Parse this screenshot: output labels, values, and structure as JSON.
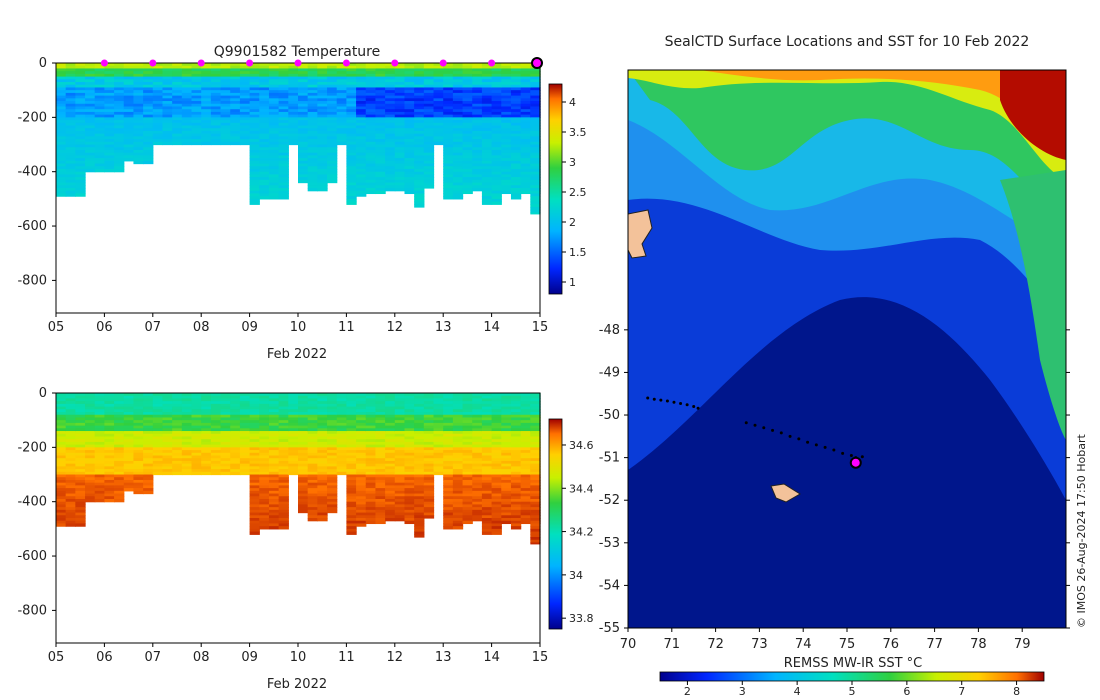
{
  "chart_data": [
    {
      "type": "heatmap",
      "name": "temperature-section",
      "title": "Q9901582  Temperature",
      "xlabel": "Feb 2022",
      "ylabel": "",
      "x_ticks": [
        "05",
        "06",
        "07",
        "08",
        "09",
        "10",
        "11",
        "12",
        "13",
        "14",
        "15"
      ],
      "y_ticks": [
        "0",
        "-200",
        "-400",
        "-600",
        "-800"
      ],
      "ylim": [
        -920,
        0
      ],
      "xlim": [
        5,
        15
      ],
      "profile_days": [
        5.0,
        5.2,
        5.4,
        5.6,
        5.8,
        6.0,
        6.2,
        6.4,
        6.6,
        6.8,
        7.0,
        7.2,
        7.4,
        7.6,
        7.8,
        8.0,
        8.2,
        8.4,
        8.6,
        8.8,
        9.0,
        9.2,
        9.4,
        9.6,
        9.8,
        10.0,
        10.2,
        10.4,
        10.6,
        10.8,
        11.0,
        11.2,
        11.4,
        11.6,
        11.8,
        12.0,
        12.2,
        12.4,
        12.6,
        12.8,
        13.0,
        13.2,
        13.4,
        13.6,
        13.8,
        14.0,
        14.2,
        14.4,
        14.6,
        14.8,
        15.0
      ],
      "profile_depths_m": [
        490,
        490,
        490,
        400,
        400,
        400,
        400,
        360,
        370,
        370,
        300,
        300,
        300,
        300,
        300,
        300,
        300,
        300,
        300,
        300,
        520,
        500,
        500,
        500,
        300,
        440,
        470,
        470,
        440,
        300,
        520,
        490,
        480,
        480,
        470,
        470,
        480,
        530,
        460,
        300,
        500,
        500,
        480,
        470,
        520,
        520,
        480,
        500,
        480,
        480,
        555
      ],
      "surface_markers_days": [
        6,
        7,
        8,
        9,
        10,
        11,
        12,
        13,
        14
      ],
      "current_day": 15,
      "colorbar": {
        "min": 0.8,
        "max": 4.3,
        "ticks": [
          "1",
          "1.5",
          "2",
          "2.5",
          "3",
          "3.5",
          "4"
        ]
      }
    },
    {
      "type": "heatmap",
      "name": "salinity-section",
      "title": "",
      "xlabel": "Feb 2022",
      "ylabel": "",
      "x_ticks": [
        "05",
        "06",
        "07",
        "08",
        "09",
        "10",
        "11",
        "12",
        "13",
        "14",
        "15"
      ],
      "y_ticks": [
        "0",
        "-200",
        "-400",
        "-600",
        "-800"
      ],
      "ylim": [
        -920,
        0
      ],
      "xlim": [
        5,
        15
      ],
      "colorbar": {
        "min": 33.75,
        "max": 34.72,
        "ticks": [
          "33.8",
          "34",
          "34.2",
          "34.4",
          "34.6"
        ]
      }
    },
    {
      "type": "heatmap",
      "name": "sst-map",
      "title": "SealCTD Surface Locations and SST for 10 Feb 2022",
      "xlabel": "",
      "ylabel": "",
      "x_ticks": [
        "70",
        "71",
        "72",
        "73",
        "74",
        "75",
        "76",
        "77",
        "78",
        "79"
      ],
      "y_ticks": [
        "-48",
        "-49",
        "-50",
        "-51",
        "-52",
        "-53",
        "-54",
        "-55"
      ],
      "xlim": [
        70,
        80
      ],
      "ylim": [
        -55,
        -41.9
      ],
      "track_points": [
        {
          "lon": 70.45,
          "lat": -49.6
        },
        {
          "lon": 70.6,
          "lat": -49.63
        },
        {
          "lon": 70.75,
          "lat": -49.65
        },
        {
          "lon": 70.9,
          "lat": -49.67
        },
        {
          "lon": 71.05,
          "lat": -49.7
        },
        {
          "lon": 71.2,
          "lat": -49.73
        },
        {
          "lon": 71.35,
          "lat": -49.76
        },
        {
          "lon": 71.5,
          "lat": -49.8
        },
        {
          "lon": 71.6,
          "lat": -49.84
        },
        {
          "lon": 72.7,
          "lat": -50.18
        },
        {
          "lon": 72.9,
          "lat": -50.24
        },
        {
          "lon": 73.1,
          "lat": -50.3
        },
        {
          "lon": 73.3,
          "lat": -50.36
        },
        {
          "lon": 73.5,
          "lat": -50.42
        },
        {
          "lon": 73.7,
          "lat": -50.5
        },
        {
          "lon": 73.9,
          "lat": -50.56
        },
        {
          "lon": 74.1,
          "lat": -50.64
        },
        {
          "lon": 74.3,
          "lat": -50.7
        },
        {
          "lon": 74.5,
          "lat": -50.76
        },
        {
          "lon": 74.7,
          "lat": -50.82
        },
        {
          "lon": 74.9,
          "lat": -50.9
        },
        {
          "lon": 75.1,
          "lat": -50.95
        },
        {
          "lon": 75.2,
          "lat": -51.0
        },
        {
          "lon": 75.25,
          "lat": -51.05
        },
        {
          "lon": 75.3,
          "lat": -51.1
        },
        {
          "lon": 75.35,
          "lat": -50.98
        },
        {
          "lon": 75.15,
          "lat": -51.05
        }
      ],
      "current_position": {
        "lon": 75.2,
        "lat": -51.12
      },
      "colorbar": {
        "label": "REMSS MW-IR SST °C",
        "min": 1.5,
        "max": 8.5,
        "ticks": [
          "2",
          "3",
          "4",
          "5",
          "6",
          "7",
          "8"
        ]
      }
    }
  ],
  "footer": {
    "credit": "© IMOS 26-Aug-2024 17:50 Hobart"
  }
}
